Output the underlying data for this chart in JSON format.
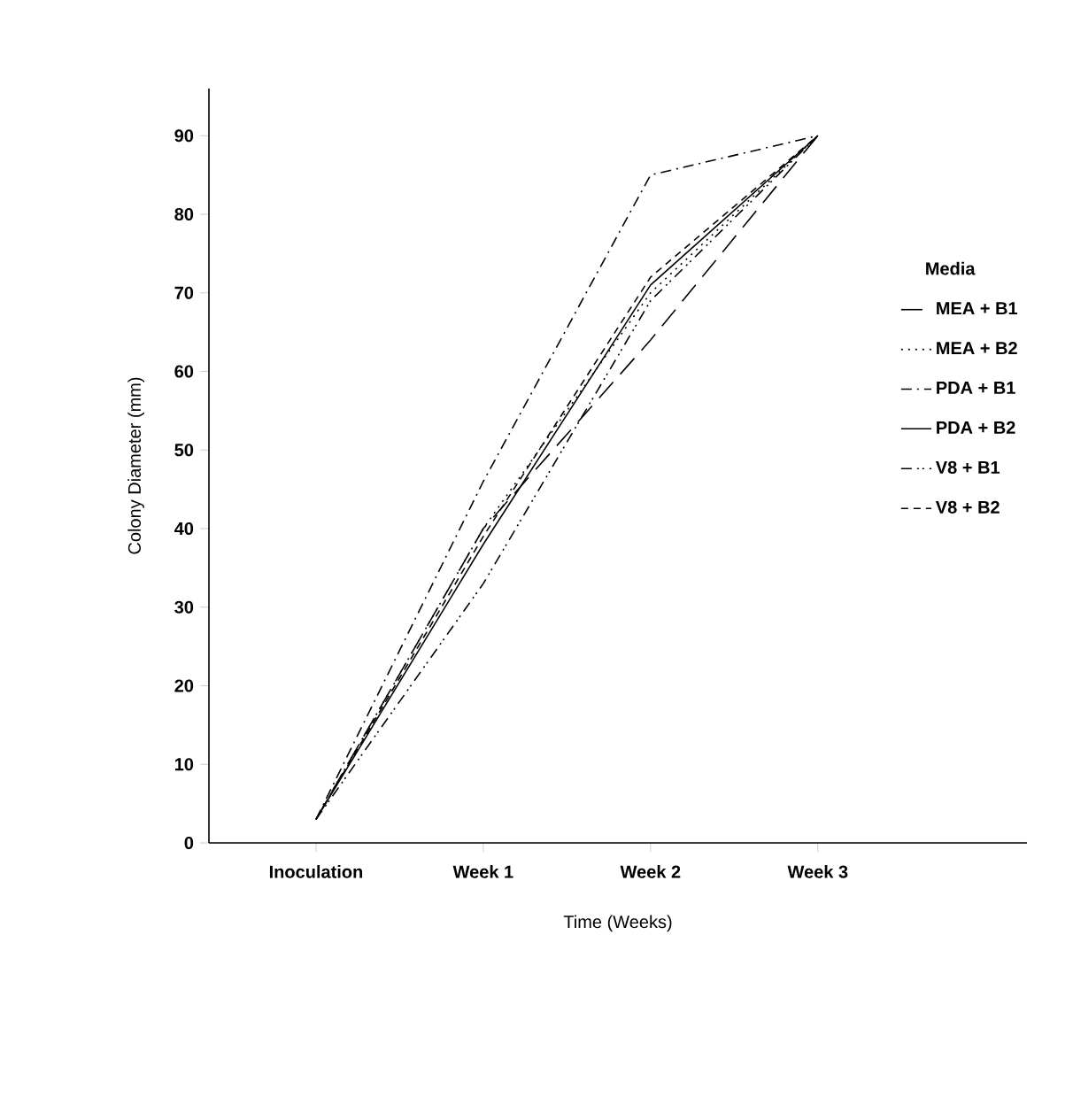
{
  "chart_data": {
    "type": "line",
    "xlabel": "Time (Weeks)",
    "ylabel": "Colony Diameter (mm)",
    "legend_title": "Media",
    "legend": "right",
    "categories": [
      "Inoculation",
      "Week 1",
      "Week 2",
      "Week 3"
    ],
    "ylim": [
      0,
      96
    ],
    "yticks": [
      0,
      10,
      20,
      30,
      40,
      50,
      60,
      70,
      80,
      90
    ],
    "series": [
      {
        "name": "MEA + B1",
        "color": "#000000",
        "line_style": "longdashed",
        "values": [
          3,
          40,
          64,
          90
        ]
      },
      {
        "name": "MEA + B2",
        "color": "#000000",
        "line_style": "dotted",
        "values": [
          3,
          40,
          70,
          90
        ]
      },
      {
        "name": "PDA + B1",
        "color": "#000000",
        "line_style": "dashdotted",
        "values": [
          3,
          46,
          85,
          90
        ]
      },
      {
        "name": "PDA + B2",
        "color": "#000000",
        "line_style": "solid",
        "values": [
          3,
          38,
          71,
          90
        ]
      },
      {
        "name": "V8 + B1",
        "color": "#000000",
        "line_style": "dashdotdotted",
        "values": [
          3,
          33,
          69,
          90
        ]
      },
      {
        "name": "V8 + B2",
        "color": "#000000",
        "line_style": "dashed",
        "values": [
          3,
          39,
          72,
          90
        ]
      }
    ]
  }
}
